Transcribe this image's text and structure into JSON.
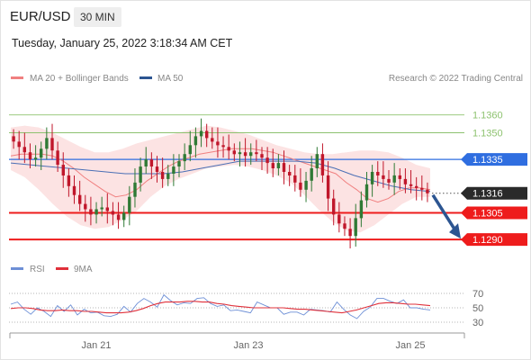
{
  "header": {
    "pair": "EUR/USD",
    "timeframe": "30 MIN",
    "datetime": "Tuesday, January 25, 2022 3:18:34 AM CET",
    "credit": "Research © 2022 Trading Central"
  },
  "colors": {
    "candle_up": "#2f7a35",
    "candle_down": "#c0172b",
    "ma20": "#f08080",
    "bollinger_fill": "#fbd9d9",
    "ma50": "#4a6fb5",
    "resistance_green": "#8dc26f",
    "pivot_blue": "#2f6ee0",
    "support_red": "#ee1c1c",
    "last_price": "#2a2a2a",
    "arrow": "#2c5591",
    "rsi": "#6d8fd6",
    "rsi_ma": "#e0303a"
  },
  "chart_data": [
    {
      "type": "candlestick",
      "legend": [
        {
          "name": "MA 20 + Bollinger Bands",
          "color": "#f08080"
        },
        {
          "name": "MA 50",
          "color": "#2c5591"
        }
      ],
      "x_ticks": [
        "Jan 21",
        "Jan 23",
        "Jan 25"
      ],
      "ylim": [
        1.1285,
        1.1372
      ],
      "levels": [
        {
          "label": "1.1360",
          "value": 1.136,
          "kind": "resistance"
        },
        {
          "label": "1.1350",
          "value": 1.135,
          "kind": "resistance"
        },
        {
          "label": "1.1335",
          "value": 1.1335,
          "kind": "pivot"
        },
        {
          "label": "1.1316",
          "value": 1.1316,
          "kind": "last"
        },
        {
          "label": "1.1305",
          "value": 1.1305,
          "kind": "support"
        },
        {
          "label": "1.1290",
          "value": 1.129,
          "kind": "support"
        }
      ],
      "close_series": [
        1.1345,
        1.1342,
        1.1339,
        1.1335,
        1.1336,
        1.1341,
        1.1347,
        1.134,
        1.1332,
        1.1326,
        1.132,
        1.1315,
        1.131,
        1.1307,
        1.1304,
        1.1307,
        1.1308,
        1.1306,
        1.1304,
        1.1301,
        1.1305,
        1.1314,
        1.1322,
        1.1331,
        1.1335,
        1.1331,
        1.1328,
        1.1324,
        1.1327,
        1.1331,
        1.1334,
        1.1338,
        1.1343,
        1.1348,
        1.1351,
        1.1347,
        1.1345,
        1.1343,
        1.1342,
        1.134,
        1.1338,
        1.1339,
        1.1337,
        1.1339,
        1.1338,
        1.1336,
        1.1333,
        1.133,
        1.1333,
        1.1328,
        1.1326,
        1.1322,
        1.1318,
        1.1323,
        1.133,
        1.1338,
        1.1326,
        1.1313,
        1.1304,
        1.1299,
        1.1296,
        1.1292,
        1.1302,
        1.1312,
        1.1321,
        1.1328,
        1.1326,
        1.1324,
        1.1322,
        1.1326,
        1.1324,
        1.1321,
        1.132,
        1.1319,
        1.1318,
        1.1316
      ],
      "ma20_series": [
        1.1337,
        1.1338,
        1.1338,
        1.1338,
        1.1337,
        1.1334,
        1.133,
        1.1325,
        1.1321,
        1.1317,
        1.1314,
        1.1315,
        1.1318,
        1.1323,
        1.1327,
        1.1331,
        1.1334,
        1.1336,
        1.1338,
        1.1339,
        1.134,
        1.1341,
        1.1341,
        1.1341,
        1.134,
        1.1339,
        1.1337,
        1.1335,
        1.1333,
        1.1331,
        1.1329,
        1.1327,
        1.1322,
        1.1318,
        1.1313,
        1.1311,
        1.1313,
        1.1317,
        1.1319,
        1.1319,
        1.1318
      ],
      "upper_band": [
        1.1353,
        1.1354,
        1.1353,
        1.135,
        1.1346,
        1.1342,
        1.1339,
        1.1339,
        1.1341,
        1.1344,
        1.1346,
        1.1348,
        1.135,
        1.1352,
        1.1354,
        1.1353,
        1.1351,
        1.1349,
        1.1346,
        1.1343,
        1.1341,
        1.1339,
        1.1338,
        1.1338,
        1.1339,
        1.134,
        1.134,
        1.1339,
        1.1336,
        1.1332,
        1.133
      ],
      "lower_band": [
        1.1329,
        1.1325,
        1.1318,
        1.131,
        1.1303,
        1.1298,
        1.1296,
        1.1297,
        1.1301,
        1.1306,
        1.1314,
        1.132,
        1.1324,
        1.1327,
        1.133,
        1.1331,
        1.1332,
        1.1331,
        1.1329,
        1.1326,
        1.1322,
        1.1315,
        1.1307,
        1.13,
        1.1295,
        1.1294,
        1.1298,
        1.1304,
        1.131,
        1.1314,
        1.1314
      ],
      "ma50_series": [
        1.1333,
        1.1332,
        1.1331,
        1.133,
        1.1329,
        1.1328,
        1.1327,
        1.1327,
        1.1327,
        1.1328,
        1.133,
        1.1332,
        1.1334,
        1.1334,
        1.1334,
        1.1334,
        1.1333,
        1.133,
        1.1326,
        1.1323,
        1.132,
        1.1318,
        1.1317
      ]
    },
    {
      "type": "line",
      "legend": [
        {
          "name": "RSI",
          "color": "#6d8fd6"
        },
        {
          "name": "9MA",
          "color": "#e0303a"
        }
      ],
      "y_ticks": [
        70,
        50,
        30
      ],
      "ylim": [
        20,
        80
      ],
      "rsi": [
        55,
        58,
        48,
        41,
        50,
        45,
        38,
        53,
        45,
        54,
        40,
        48,
        43,
        44,
        39,
        38,
        41,
        52,
        44,
        56,
        63,
        58,
        51,
        68,
        60,
        54,
        57,
        56,
        63,
        64,
        56,
        52,
        54,
        46,
        47,
        45,
        43,
        58,
        54,
        50,
        50,
        41,
        44,
        44,
        40,
        48,
        47,
        46,
        44,
        58,
        48,
        40,
        35,
        45,
        51,
        63,
        63,
        59,
        56,
        61,
        50,
        50,
        48,
        47
      ],
      "rsi_ma": [
        49,
        50,
        50,
        49,
        47,
        46,
        46,
        47,
        46,
        46,
        45,
        45,
        44,
        43,
        43,
        43,
        44,
        46,
        49,
        53,
        56,
        58,
        58,
        58,
        59,
        59,
        58,
        58,
        56,
        55,
        53,
        52,
        51,
        50,
        50,
        50,
        50,
        50,
        49,
        48,
        48,
        47,
        46,
        45,
        44,
        43,
        45,
        47,
        50,
        53,
        56,
        57,
        57,
        56,
        55,
        55,
        54,
        53
      ]
    }
  ]
}
